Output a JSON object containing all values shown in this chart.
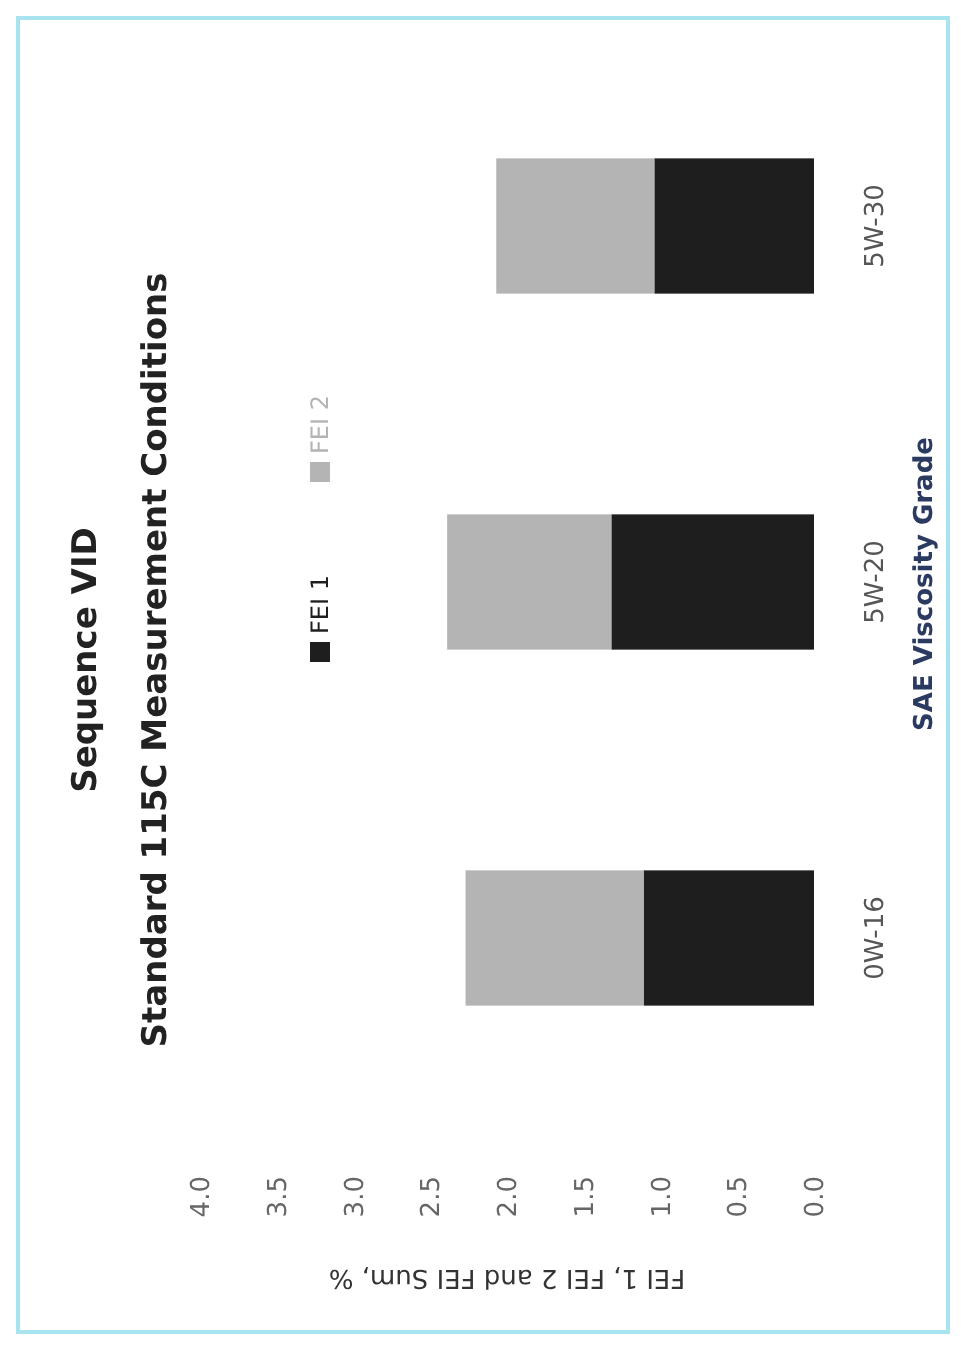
{
  "chart_data": {
    "type": "bar",
    "orientation": "horizontal",
    "title": "Sequence VID",
    "subtitle": "Standard 115C Measurement Conditions",
    "xlabel": "FEI 1, FEI 2 and FEI Sum, %",
    "ylabel": "SAE Viscosity Grade",
    "categories": [
      "5W-30",
      "5W-20",
      "0W-16"
    ],
    "stacked": true,
    "series": [
      {
        "name": "FEI 1",
        "color": "#1e1e1e",
        "values": [
          1.04,
          1.32,
          1.11
        ]
      },
      {
        "name": "FEI 2",
        "color": "#b4b4b4",
        "values": [
          1.03,
          1.07,
          1.16
        ]
      }
    ],
    "xlim": [
      4,
      0
    ],
    "xticks": [
      {
        "value": 0,
        "label": "0.0"
      },
      {
        "value": 0.5,
        "label": "0.5"
      },
      {
        "value": 1,
        "label": "1.0"
      },
      {
        "value": 1.5,
        "label": "1.5"
      },
      {
        "value": 2,
        "label": "2.0"
      },
      {
        "value": 2.5,
        "label": "2.5"
      },
      {
        "value": 3,
        "label": "3.0"
      },
      {
        "value": 3.5,
        "label": "3.5"
      },
      {
        "value": 4,
        "label": "4.0"
      }
    ],
    "legend": "left",
    "grid": false
  }
}
